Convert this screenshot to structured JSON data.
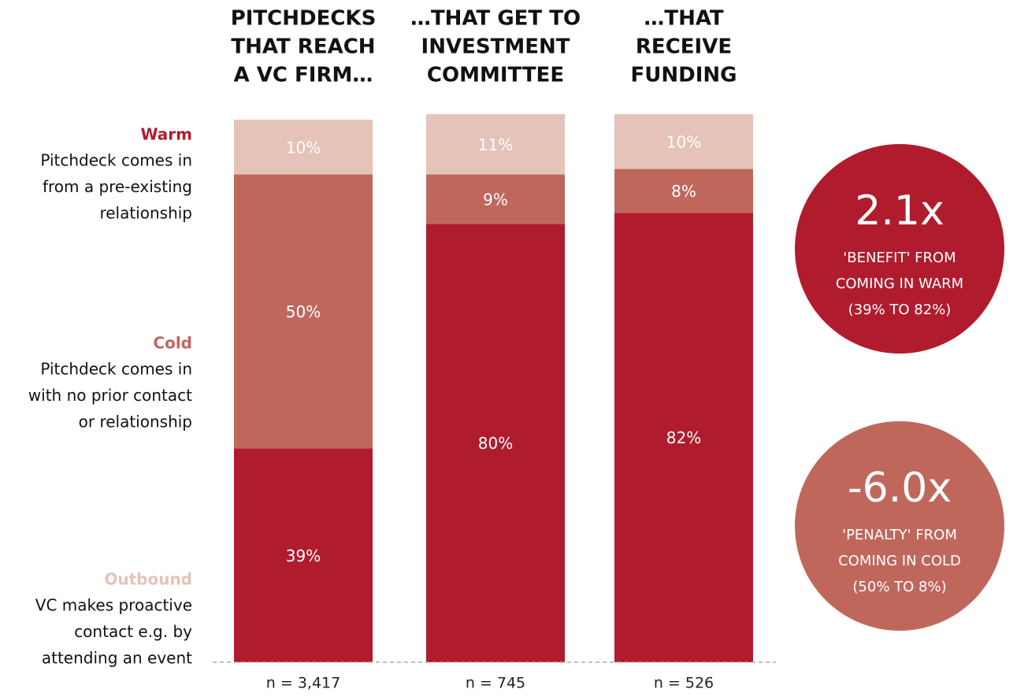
{
  "chart_data": {
    "type": "stacked_bar",
    "categories": [
      [
        "PITCHDECKS",
        "THAT REACH",
        "A VC FIRM…"
      ],
      [
        "…THAT GET TO",
        "INVESTMENT",
        "COMMITTEE"
      ],
      [
        "…THAT",
        "RECEIVE",
        "FUNDING"
      ]
    ],
    "series": [
      {
        "name": "Warm",
        "description": [
          "Pitchdeck comes in",
          "from a pre-existing",
          "relationship"
        ],
        "color": "#b01c2e",
        "values": [
          39,
          80,
          82
        ],
        "value_labels": [
          "39%",
          "80%",
          "82%"
        ]
      },
      {
        "name": "Cold",
        "description": [
          "Pitchdeck comes in",
          "with no prior contact",
          "or relationship"
        ],
        "color": "#c0675c",
        "values": [
          50,
          9,
          8
        ],
        "value_labels": [
          "50%",
          "9%",
          "8%"
        ]
      },
      {
        "name": "Outbound",
        "description": [
          "VC makes proactive",
          "contact e.g. by",
          "attending an event"
        ],
        "color": "#e5c3b8",
        "values": [
          10,
          11,
          10
        ],
        "value_labels": [
          "10%",
          "11%",
          "10%"
        ]
      }
    ],
    "ylim": [
      0,
      100
    ],
    "n_labels": [
      "n = 3,417",
      "n = 745",
      "n = 526"
    ],
    "annotations": [
      {
        "headline": "2.1x",
        "lines": [
          "'BENEFIT' FROM",
          "COMING IN WARM",
          "(39% TO 82%)"
        ],
        "color": "#b01c2e"
      },
      {
        "headline": "-6.0x",
        "lines": [
          "'PENALTY' FROM",
          "COMING IN COLD",
          "(50% TO 8%)"
        ],
        "color": "#c0675c"
      }
    ]
  }
}
